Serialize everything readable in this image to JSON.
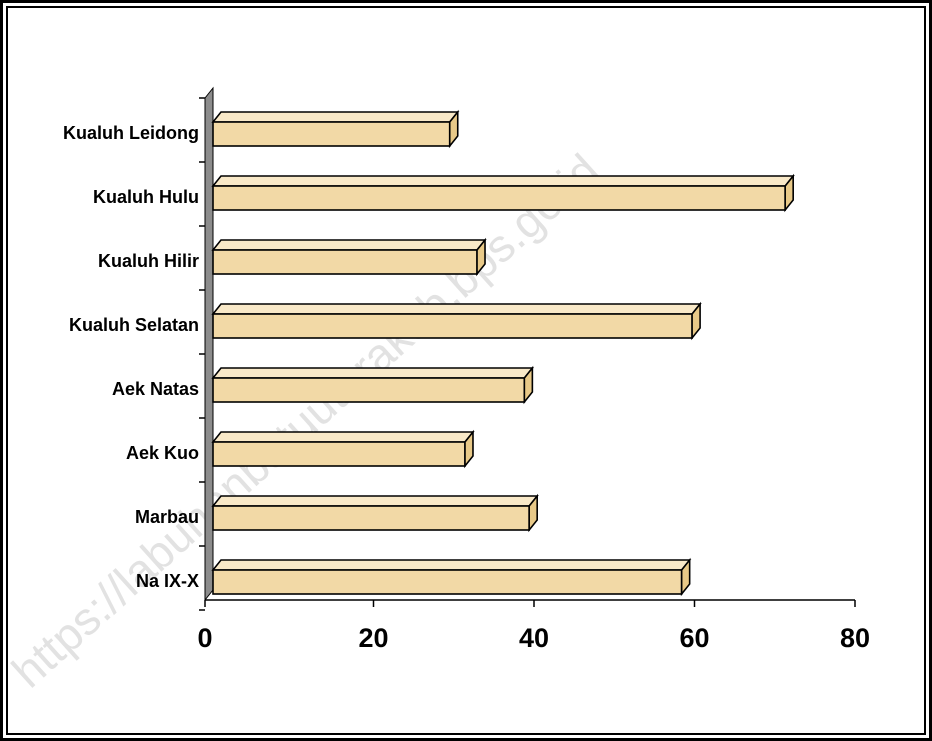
{
  "watermark": "https://labuhanbatuutarakab.bps.go.id",
  "colors": {
    "bar_face": "#f2d9a6",
    "bar_top": "#f9e9c8",
    "bar_side": "#e8c988",
    "bar_stroke": "#000000",
    "wall": "#8c8c8c"
  },
  "chart_data": {
    "type": "bar",
    "orientation": "horizontal",
    "style": "3d",
    "categories": [
      "Kualuh Leidong",
      "Kualuh Hulu",
      "Kualuh Hilir",
      "Kualuh Selatan",
      "Aek Natas",
      "Aek Kuo",
      "Marbau",
      "Na IX-X"
    ],
    "values": [
      29.5,
      71.3,
      32.9,
      59.7,
      38.8,
      31.4,
      39.4,
      58.4
    ],
    "xlim": [
      0,
      80
    ],
    "xticks": [
      "0",
      "20",
      "40",
      "60",
      "80"
    ],
    "title": "",
    "xlabel": "",
    "ylabel": "",
    "grid": false,
    "legend": "none"
  }
}
